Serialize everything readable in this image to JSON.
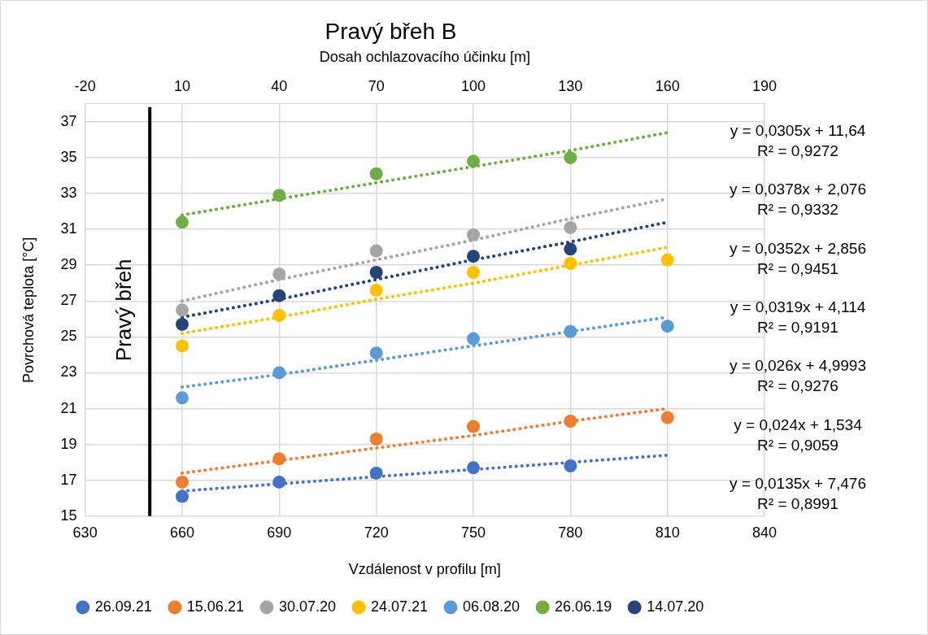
{
  "chart_data": {
    "type": "scatter",
    "title": "Pravý břeh B",
    "xlabel": "Vzdálenost v profilu [m]",
    "ylabel": "Povrchová teplota [°C]",
    "x2label": "Dosah ochlazovacího účinku [m]",
    "x": [
      660,
      690,
      720,
      750,
      780,
      810
    ],
    "series": [
      {
        "name": "26.09.21",
        "color": "#4472c4",
        "values": [
          16.1,
          16.9,
          17.4,
          17.7,
          17.8,
          null
        ]
      },
      {
        "name": "15.06.21",
        "color": "#ed7d31",
        "values": [
          16.9,
          18.2,
          19.3,
          20.0,
          20.3,
          20.5
        ]
      },
      {
        "name": "30.07.20",
        "color": "#a5a5a5",
        "values": [
          26.5,
          28.5,
          29.8,
          30.7,
          31.1,
          null
        ]
      },
      {
        "name": "24.07.21",
        "color": "#ffc000",
        "values": [
          24.5,
          26.2,
          27.6,
          28.6,
          29.1,
          29.3
        ]
      },
      {
        "name": "06.08.20",
        "color": "#5b9bd5",
        "values": [
          21.6,
          23.0,
          24.1,
          24.9,
          25.3,
          25.6
        ]
      },
      {
        "name": "26.06.19",
        "color": "#70ad47",
        "values": [
          31.4,
          32.9,
          34.1,
          34.8,
          35.0,
          null
        ]
      },
      {
        "name": "14.07.20",
        "color": "#264478",
        "values": [
          25.7,
          27.3,
          28.6,
          29.5,
          29.9,
          null
        ]
      },
      {
        "type": "line",
        "color": "#70ad47",
        "line_style": "dotted",
        "marker": "none",
        "values": [
          31.8,
          32.7,
          33.6,
          34.5,
          35.4,
          36.4
        ]
      },
      {
        "type": "line",
        "color": "#a5a5a5",
        "line_style": "dotted",
        "marker": "none",
        "values": [
          27.0,
          28.2,
          29.3,
          30.4,
          31.6,
          32.7
        ]
      },
      {
        "type": "line",
        "color": "#264478",
        "line_style": "dotted",
        "marker": "none",
        "values": [
          26.1,
          27.1,
          28.2,
          29.3,
          30.3,
          31.4
        ]
      },
      {
        "type": "line",
        "color": "#ffc000",
        "line_style": "dotted",
        "marker": "none",
        "values": [
          25.2,
          26.1,
          27.1,
          28.0,
          29.0,
          30.0
        ]
      },
      {
        "type": "line",
        "color": "#5b9bd5",
        "line_style": "dotted",
        "marker": "none",
        "values": [
          22.2,
          22.9,
          23.7,
          24.5,
          25.3,
          26.1
        ]
      },
      {
        "type": "line",
        "color": "#ed7d31",
        "line_style": "dotted",
        "marker": "none",
        "values": [
          17.4,
          18.1,
          18.8,
          19.5,
          20.3,
          21.0
        ]
      },
      {
        "type": "line",
        "color": "#4472c4",
        "line_style": "dotted",
        "marker": "none",
        "values": [
          16.4,
          16.8,
          17.2,
          17.6,
          18.0,
          18.4
        ]
      }
    ],
    "xlim": [
      630,
      840
    ],
    "xticks": [
      630,
      660,
      690,
      720,
      750,
      780,
      810,
      840
    ],
    "x2lim": [
      -20,
      190
    ],
    "x2ticks": [
      -20,
      10,
      40,
      70,
      100,
      130,
      160,
      190
    ],
    "ylim": [
      15,
      38
    ],
    "yticks": [
      15,
      17,
      19,
      21,
      23,
      25,
      27,
      29,
      31,
      33,
      35,
      37
    ],
    "ref_lines": [
      {
        "axis": "x",
        "value": 650,
        "label": "Pravý břeh",
        "color": "#000000"
      }
    ],
    "annotations": [
      "y = 0,0305x + 11,64\nR² = 0,9272",
      "y = 0,0378x + 2,076\nR² = 0,9332",
      "y = 0,0352x + 2,856\nR² = 0,9451",
      "y = 0,0319x + 4,114\nR² = 0,9191",
      "y = 0,026x + 4,9993\nR² = 0,9276",
      "y = 0,024x + 1,534\nR² = 0,9059",
      "y = 0,0135x + 7,476\nR² = 0,8991"
    ],
    "grid": true,
    "legend": "bottom",
    "marker": "circle"
  }
}
